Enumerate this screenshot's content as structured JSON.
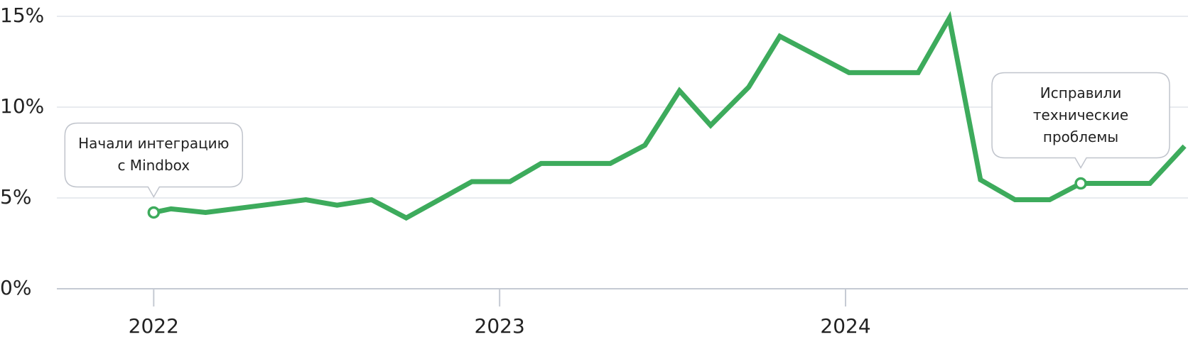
{
  "chart_data": {
    "type": "line",
    "x": [
      2022.0,
      2022.05,
      2022.15,
      2022.44,
      2022.53,
      2022.63,
      2022.73,
      2022.92,
      2023.03,
      2023.12,
      2023.32,
      2023.42,
      2023.52,
      2023.61,
      2023.72,
      2023.81,
      2024.01,
      2024.21,
      2024.3,
      2024.39,
      2024.49,
      2024.59,
      2024.68,
      2024.88,
      2024.98
    ],
    "series": [
      {
        "color": "#3dab5c",
        "values": [
          4.2,
          4.4,
          4.2,
          4.9,
          4.6,
          4.9,
          3.9,
          5.9,
          5.9,
          6.9,
          6.9,
          7.9,
          10.9,
          9.0,
          11.1,
          13.9,
          11.9,
          11.9,
          14.9,
          6.0,
          4.9,
          4.9,
          5.8,
          5.8,
          7.85
        ]
      }
    ],
    "xlim": [
      2021.72,
      2024.99
    ],
    "xticks": [
      2022,
      2023,
      2024
    ],
    "ylim": [
      0,
      15
    ],
    "yticks": [
      {
        "value": 0,
        "label": "0%"
      },
      {
        "value": 5,
        "label": "5%"
      },
      {
        "value": 10,
        "label": "10%"
      },
      {
        "value": 15,
        "label": "15%"
      }
    ],
    "grid": true,
    "annotations": [
      {
        "lines": [
          "Начали интеграцию",
          "с Mindbox"
        ],
        "x": 2022.0,
        "y": 4.2
      },
      {
        "lines": [
          "Исправили",
          "технические",
          "проблемы"
        ],
        "x": 2024.68,
        "y": 5.8
      }
    ]
  }
}
